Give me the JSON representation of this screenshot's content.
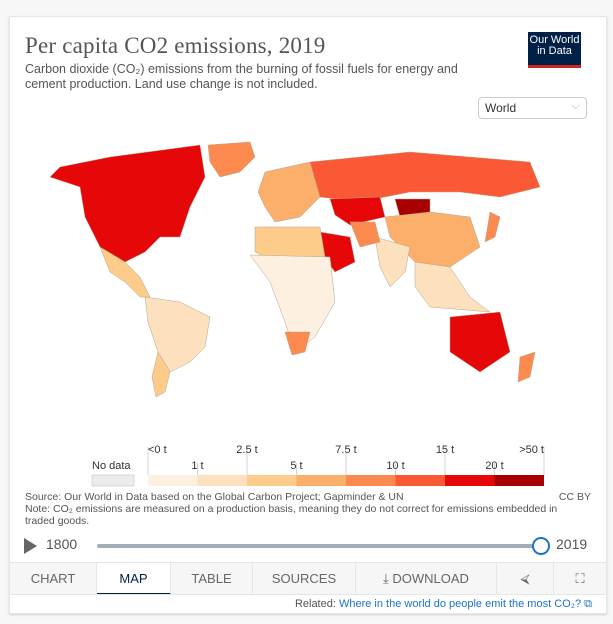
{
  "header": {
    "title": "Per capita CO2 emissions, 2019",
    "subtitle": "Carbon dioxide (CO₂) emissions from the burning of fossil fuels for energy and cement production. Land use change is not included.",
    "logo_line1": "Our World",
    "logo_line2": "in Data"
  },
  "region_select": {
    "value": "World",
    "chevron": "⌵"
  },
  "map": {
    "year": 2019,
    "regions": [
      {
        "name": "North America (USA/Canada)",
        "bin": 6
      },
      {
        "name": "Mexico & Central America",
        "bin": 2
      },
      {
        "name": "South America",
        "bin": 1
      },
      {
        "name": "Argentina/Chile",
        "bin": 2
      },
      {
        "name": "Greenland",
        "bin": 4
      },
      {
        "name": "Europe",
        "bin": 3
      },
      {
        "name": "Russia",
        "bin": 5
      },
      {
        "name": "Kazakhstan",
        "bin": 6
      },
      {
        "name": "Mongolia",
        "bin": 7
      },
      {
        "name": "China",
        "bin": 3
      },
      {
        "name": "India & South Asia",
        "bin": 1
      },
      {
        "name": "Middle East (Saudi Arabia)",
        "bin": 6
      },
      {
        "name": "Iran",
        "bin": 4
      },
      {
        "name": "North Africa",
        "bin": 2
      },
      {
        "name": "Sub-Saharan Africa",
        "bin": 0
      },
      {
        "name": "South Africa",
        "bin": 4
      },
      {
        "name": "Southeast Asia",
        "bin": 1
      },
      {
        "name": "Japan",
        "bin": 4
      },
      {
        "name": "Australia",
        "bin": 6
      },
      {
        "name": "New Zealand",
        "bin": 4
      }
    ]
  },
  "legend": {
    "no_data_label": "No data",
    "no_data_color": "#ececec",
    "top_labels": [
      "<0 t",
      "2.5 t",
      "7.5 t",
      "15 t",
      ">50 t"
    ],
    "bottom_labels": [
      "1 t",
      "5 t",
      "10 t",
      "20 t"
    ],
    "colors": [
      "#fef0e1",
      "#fde0bd",
      "#fdcc8a",
      "#fcae6b",
      "#fc8a4f",
      "#fb5935",
      "#e60808",
      "#a80000"
    ]
  },
  "footer": {
    "source": "Source: Our World in Data based on the Global Carbon Project; Gapminder & UN",
    "note": "Note: CO₂ emissions are measured on a production basis, meaning they do not correct for emissions embedded in traded goods.",
    "license": "CC BY"
  },
  "timeline": {
    "start_year": "1800",
    "end_year": "2019",
    "progress": 1.0
  },
  "tabs": [
    {
      "label": "CHART",
      "active": false
    },
    {
      "label": "MAP",
      "active": true
    },
    {
      "label": "TABLE",
      "active": false
    },
    {
      "label": "SOURCES",
      "active": false
    },
    {
      "label": "⤓ DOWNLOAD",
      "active": false
    },
    {
      "label": "share-icon",
      "active": false
    },
    {
      "label": "fullscreen-icon",
      "active": false
    }
  ],
  "related": {
    "prefix": "Related: ",
    "link": "Where in the world do people emit the most CO₂?",
    "icon": "⧉"
  }
}
